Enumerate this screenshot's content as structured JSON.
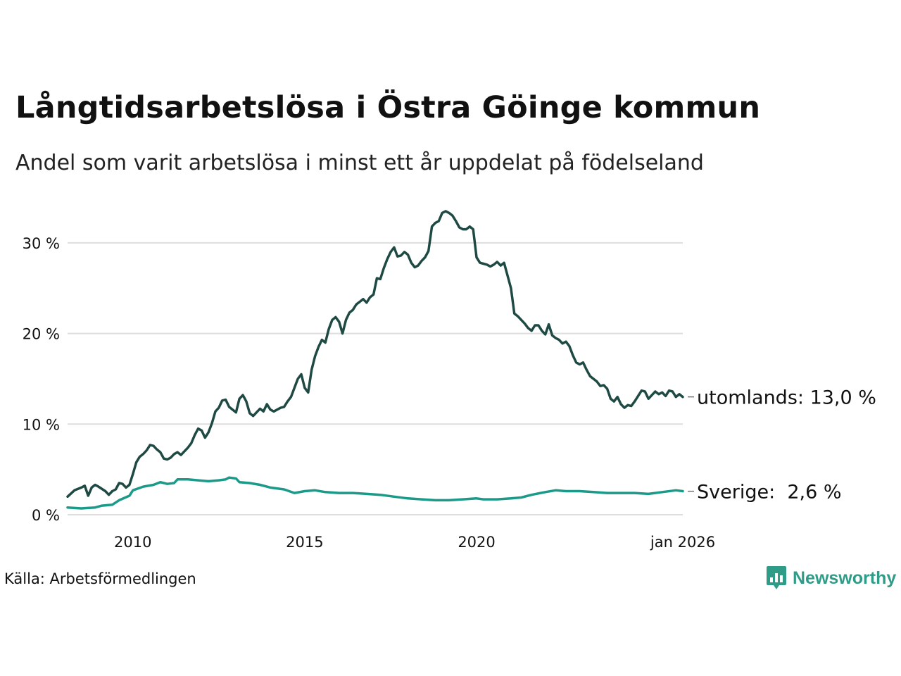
{
  "header": {
    "title": "Långtidsarbetslösa i Östra Göinge kommun",
    "subtitle": "Andel som varit arbetslösa i minst ett år uppdelat på födelseland"
  },
  "footer": {
    "source": "Källa: Arbetsförmedlingen",
    "brand": "Newsworthy"
  },
  "colors": {
    "utomlands": "#1f4a44",
    "sverige": "#1b9a89",
    "grid": "#dedede",
    "brand": "#2f9c88"
  },
  "chart_data": {
    "type": "line",
    "title": "Långtidsarbetslösa i Östra Göinge kommun",
    "subtitle": "Andel som varit arbetslösa i minst ett år uppdelat på födelseland",
    "xlabel": "",
    "ylabel": "",
    "xlim": [
      2008.1,
      2026.0
    ],
    "ylim": [
      0,
      35
    ],
    "grid": true,
    "x_ticks": [
      {
        "value": 2010,
        "label": "2010"
      },
      {
        "value": 2015,
        "label": "2015"
      },
      {
        "value": 2020,
        "label": "2020"
      },
      {
        "value": 2026.0,
        "label": "jan 2026"
      }
    ],
    "y_ticks": [
      {
        "value": 0,
        "label": "0 %"
      },
      {
        "value": 10,
        "label": "10 %"
      },
      {
        "value": 20,
        "label": "20 %"
      },
      {
        "value": 30,
        "label": "30 %"
      }
    ],
    "series": [
      {
        "name": "utomlands",
        "end_label": "utomlands: 13,0 %",
        "color": "#1f4a44",
        "points": [
          [
            2008.1,
            2.0
          ],
          [
            2008.3,
            2.7
          ],
          [
            2008.5,
            3.0
          ],
          [
            2008.6,
            3.2
          ],
          [
            2008.7,
            2.1
          ],
          [
            2008.8,
            3.0
          ],
          [
            2008.9,
            3.3
          ],
          [
            2009.0,
            3.1
          ],
          [
            2009.2,
            2.6
          ],
          [
            2009.3,
            2.2
          ],
          [
            2009.4,
            2.6
          ],
          [
            2009.5,
            2.8
          ],
          [
            2009.6,
            3.5
          ],
          [
            2009.7,
            3.4
          ],
          [
            2009.8,
            3.0
          ],
          [
            2009.9,
            3.3
          ],
          [
            2010.0,
            4.5
          ],
          [
            2010.1,
            5.8
          ],
          [
            2010.2,
            6.4
          ],
          [
            2010.3,
            6.7
          ],
          [
            2010.4,
            7.1
          ],
          [
            2010.5,
            7.7
          ],
          [
            2010.6,
            7.6
          ],
          [
            2010.7,
            7.2
          ],
          [
            2010.8,
            6.9
          ],
          [
            2010.9,
            6.2
          ],
          [
            2011.0,
            6.1
          ],
          [
            2011.1,
            6.3
          ],
          [
            2011.2,
            6.7
          ],
          [
            2011.3,
            6.9
          ],
          [
            2011.4,
            6.6
          ],
          [
            2011.5,
            7.0
          ],
          [
            2011.6,
            7.4
          ],
          [
            2011.7,
            7.9
          ],
          [
            2011.8,
            8.8
          ],
          [
            2011.9,
            9.5
          ],
          [
            2012.0,
            9.3
          ],
          [
            2012.1,
            8.5
          ],
          [
            2012.2,
            9.1
          ],
          [
            2012.3,
            10.1
          ],
          [
            2012.4,
            11.4
          ],
          [
            2012.5,
            11.8
          ],
          [
            2012.6,
            12.6
          ],
          [
            2012.7,
            12.7
          ],
          [
            2012.8,
            11.9
          ],
          [
            2012.9,
            11.6
          ],
          [
            2013.0,
            11.3
          ],
          [
            2013.1,
            12.8
          ],
          [
            2013.2,
            13.2
          ],
          [
            2013.3,
            12.5
          ],
          [
            2013.4,
            11.2
          ],
          [
            2013.5,
            10.9
          ],
          [
            2013.6,
            11.3
          ],
          [
            2013.7,
            11.7
          ],
          [
            2013.8,
            11.4
          ],
          [
            2013.9,
            12.2
          ],
          [
            2014.0,
            11.6
          ],
          [
            2014.1,
            11.4
          ],
          [
            2014.2,
            11.6
          ],
          [
            2014.3,
            11.8
          ],
          [
            2014.4,
            11.9
          ],
          [
            2014.5,
            12.5
          ],
          [
            2014.6,
            13.0
          ],
          [
            2014.7,
            14.0
          ],
          [
            2014.8,
            15.0
          ],
          [
            2014.9,
            15.5
          ],
          [
            2015.0,
            14.0
          ],
          [
            2015.1,
            13.5
          ],
          [
            2015.2,
            16.0
          ],
          [
            2015.3,
            17.5
          ],
          [
            2015.4,
            18.5
          ],
          [
            2015.5,
            19.3
          ],
          [
            2015.6,
            19.0
          ],
          [
            2015.7,
            20.5
          ],
          [
            2015.8,
            21.5
          ],
          [
            2015.9,
            21.8
          ],
          [
            2016.0,
            21.3
          ],
          [
            2016.1,
            20.0
          ],
          [
            2016.2,
            21.5
          ],
          [
            2016.3,
            22.3
          ],
          [
            2016.4,
            22.6
          ],
          [
            2016.5,
            23.2
          ],
          [
            2016.6,
            23.5
          ],
          [
            2016.7,
            23.8
          ],
          [
            2016.8,
            23.4
          ],
          [
            2016.9,
            24.0
          ],
          [
            2017.0,
            24.3
          ],
          [
            2017.1,
            26.1
          ],
          [
            2017.2,
            26.0
          ],
          [
            2017.3,
            27.2
          ],
          [
            2017.4,
            28.2
          ],
          [
            2017.5,
            29.0
          ],
          [
            2017.6,
            29.5
          ],
          [
            2017.7,
            28.5
          ],
          [
            2017.8,
            28.6
          ],
          [
            2017.9,
            29.0
          ],
          [
            2018.0,
            28.7
          ],
          [
            2018.1,
            27.8
          ],
          [
            2018.2,
            27.3
          ],
          [
            2018.3,
            27.5
          ],
          [
            2018.4,
            28.0
          ],
          [
            2018.5,
            28.4
          ],
          [
            2018.6,
            29.1
          ],
          [
            2018.7,
            31.8
          ],
          [
            2018.8,
            32.2
          ],
          [
            2018.9,
            32.4
          ],
          [
            2019.0,
            33.3
          ],
          [
            2019.1,
            33.5
          ],
          [
            2019.2,
            33.3
          ],
          [
            2019.3,
            33.0
          ],
          [
            2019.4,
            32.4
          ],
          [
            2019.5,
            31.7
          ],
          [
            2019.6,
            31.5
          ],
          [
            2019.7,
            31.5
          ],
          [
            2019.8,
            31.8
          ],
          [
            2019.9,
            31.5
          ],
          [
            2020.0,
            28.4
          ],
          [
            2020.1,
            27.8
          ],
          [
            2020.2,
            27.7
          ],
          [
            2020.3,
            27.6
          ],
          [
            2020.4,
            27.4
          ],
          [
            2020.5,
            27.6
          ],
          [
            2020.6,
            27.9
          ],
          [
            2020.7,
            27.5
          ],
          [
            2020.8,
            27.8
          ],
          [
            2020.9,
            26.4
          ],
          [
            2021.0,
            25.0
          ],
          [
            2021.1,
            22.2
          ],
          [
            2021.2,
            21.9
          ],
          [
            2021.3,
            21.5
          ],
          [
            2021.4,
            21.1
          ],
          [
            2021.5,
            20.6
          ],
          [
            2021.6,
            20.3
          ],
          [
            2021.7,
            20.9
          ],
          [
            2021.8,
            20.9
          ],
          [
            2021.9,
            20.3
          ],
          [
            2022.0,
            19.9
          ],
          [
            2022.1,
            21.0
          ],
          [
            2022.2,
            19.8
          ],
          [
            2022.3,
            19.5
          ],
          [
            2022.4,
            19.3
          ],
          [
            2022.5,
            18.9
          ],
          [
            2022.6,
            19.1
          ],
          [
            2022.7,
            18.6
          ],
          [
            2022.8,
            17.6
          ],
          [
            2022.9,
            16.8
          ],
          [
            2023.0,
            16.6
          ],
          [
            2023.1,
            16.8
          ],
          [
            2023.2,
            16.0
          ],
          [
            2023.3,
            15.3
          ],
          [
            2023.4,
            15.0
          ],
          [
            2023.5,
            14.7
          ],
          [
            2023.6,
            14.2
          ],
          [
            2023.7,
            14.3
          ],
          [
            2023.8,
            13.9
          ],
          [
            2023.9,
            12.8
          ],
          [
            2024.0,
            12.5
          ],
          [
            2024.1,
            13.0
          ],
          [
            2024.2,
            12.2
          ],
          [
            2024.3,
            11.8
          ],
          [
            2024.4,
            12.1
          ],
          [
            2024.5,
            12.0
          ],
          [
            2024.6,
            12.5
          ],
          [
            2024.7,
            13.1
          ],
          [
            2024.8,
            13.7
          ],
          [
            2024.9,
            13.6
          ],
          [
            2025.0,
            12.8
          ],
          [
            2025.1,
            13.2
          ],
          [
            2025.2,
            13.6
          ],
          [
            2025.3,
            13.3
          ],
          [
            2025.4,
            13.5
          ],
          [
            2025.5,
            13.1
          ],
          [
            2025.6,
            13.7
          ],
          [
            2025.7,
            13.6
          ],
          [
            2025.8,
            13.0
          ],
          [
            2025.9,
            13.3
          ],
          [
            2026.0,
            13.0
          ]
        ]
      },
      {
        "name": "Sverige",
        "end_label": "Sverige:  2,6 %",
        "color": "#1b9a89",
        "points": [
          [
            2008.1,
            0.8
          ],
          [
            2008.5,
            0.7
          ],
          [
            2008.9,
            0.8
          ],
          [
            2009.1,
            1.0
          ],
          [
            2009.4,
            1.1
          ],
          [
            2009.6,
            1.6
          ],
          [
            2009.9,
            2.1
          ],
          [
            2010.0,
            2.7
          ],
          [
            2010.3,
            3.1
          ],
          [
            2010.6,
            3.3
          ],
          [
            2010.8,
            3.6
          ],
          [
            2011.0,
            3.4
          ],
          [
            2011.2,
            3.5
          ],
          [
            2011.3,
            3.9
          ],
          [
            2011.6,
            3.9
          ],
          [
            2011.9,
            3.8
          ],
          [
            2012.2,
            3.7
          ],
          [
            2012.5,
            3.8
          ],
          [
            2012.7,
            3.9
          ],
          [
            2012.8,
            4.1
          ],
          [
            2013.0,
            4.0
          ],
          [
            2013.1,
            3.6
          ],
          [
            2013.4,
            3.5
          ],
          [
            2013.7,
            3.3
          ],
          [
            2014.0,
            3.0
          ],
          [
            2014.4,
            2.8
          ],
          [
            2014.7,
            2.4
          ],
          [
            2015.0,
            2.6
          ],
          [
            2015.3,
            2.7
          ],
          [
            2015.6,
            2.5
          ],
          [
            2016.0,
            2.4
          ],
          [
            2016.4,
            2.4
          ],
          [
            2016.8,
            2.3
          ],
          [
            2017.2,
            2.2
          ],
          [
            2017.6,
            2.0
          ],
          [
            2018.0,
            1.8
          ],
          [
            2018.4,
            1.7
          ],
          [
            2018.8,
            1.6
          ],
          [
            2019.2,
            1.6
          ],
          [
            2019.6,
            1.7
          ],
          [
            2020.0,
            1.8
          ],
          [
            2020.2,
            1.7
          ],
          [
            2020.6,
            1.7
          ],
          [
            2021.0,
            1.8
          ],
          [
            2021.3,
            1.9
          ],
          [
            2021.6,
            2.2
          ],
          [
            2022.0,
            2.5
          ],
          [
            2022.3,
            2.7
          ],
          [
            2022.6,
            2.6
          ],
          [
            2023.0,
            2.6
          ],
          [
            2023.4,
            2.5
          ],
          [
            2023.8,
            2.4
          ],
          [
            2024.2,
            2.4
          ],
          [
            2024.6,
            2.4
          ],
          [
            2025.0,
            2.3
          ],
          [
            2025.4,
            2.5
          ],
          [
            2025.8,
            2.7
          ],
          [
            2026.0,
            2.6
          ]
        ]
      }
    ]
  }
}
